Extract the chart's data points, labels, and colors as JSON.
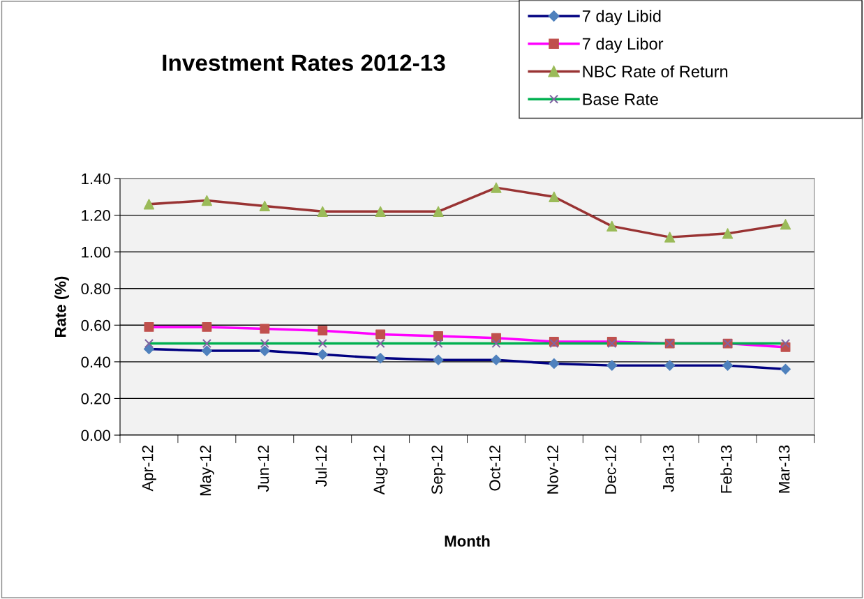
{
  "chart_data": {
    "type": "line",
    "title": "Investment Rates 2012-13",
    "xlabel": "Month",
    "ylabel": "Rate (%)",
    "categories": [
      "Apr-12",
      "May-12",
      "Jun-12",
      "Jul-12",
      "Aug-12",
      "Sep-12",
      "Oct-12",
      "Nov-12",
      "Dec-12",
      "Jan-13",
      "Feb-13",
      "Mar-13"
    ],
    "series": [
      {
        "name": "7 day Libid",
        "color": "#000080",
        "colors": [
          "#4f81bd",
          "#4f81bd",
          "#4f81bd",
          "#4f81bd",
          "#4f81bd",
          "#4f81bd",
          "#4f81bd",
          "#4f81bd",
          "#4f81bd",
          "#4f81bd",
          "#4f81bd",
          "#4f81bd"
        ],
        "marker": "diamond",
        "values": [
          0.47,
          0.46,
          0.46,
          0.44,
          0.42,
          0.41,
          0.41,
          0.39,
          0.38,
          0.38,
          0.38,
          0.36
        ]
      },
      {
        "name": "7 day Libor",
        "color": "#ff00ff",
        "colors": [
          "#c0504d",
          "#c0504d",
          "#c0504d",
          "#c0504d",
          "#c0504d",
          "#c0504d",
          "#c0504d",
          "#c0504d",
          "#c0504d",
          "#c0504d",
          "#c0504d",
          "#c0504d"
        ],
        "marker": "square",
        "values": [
          0.59,
          0.59,
          0.58,
          0.57,
          0.55,
          0.54,
          0.53,
          0.51,
          0.51,
          0.5,
          0.5,
          0.48
        ]
      },
      {
        "name": "NBC Rate of Return",
        "color": "#993333",
        "colors": [
          "#9bbb59",
          "#9bbb59",
          "#9bbb59",
          "#9bbb59",
          "#9bbb59",
          "#9bbb59",
          "#9bbb59",
          "#9bbb59",
          "#9bbb59",
          "#9bbb59",
          "#9bbb59",
          "#9bbb59"
        ],
        "marker": "triangle",
        "values": [
          1.26,
          1.28,
          1.25,
          1.22,
          1.22,
          1.22,
          1.35,
          1.3,
          1.14,
          1.08,
          1.1,
          1.15
        ]
      },
      {
        "name": "Base Rate",
        "color": "#00b050",
        "colors": [
          "#8064a2",
          "#8064a2",
          "#8064a2",
          "#8064a2",
          "#8064a2",
          "#8064a2",
          "#8064a2",
          "#8064a2",
          "#8064a2",
          "#8064a2",
          "#8064a2",
          "#8064a2"
        ],
        "marker": "cross",
        "values": [
          0.5,
          0.5,
          0.5,
          0.5,
          0.5,
          0.5,
          0.5,
          0.5,
          0.5,
          0.5,
          0.5,
          0.5
        ]
      }
    ],
    "ylim": [
      0,
      1.4
    ],
    "yticks": [
      {
        "value": 0,
        "label": "0.00"
      },
      {
        "value": 0.2,
        "label": "0.20"
      },
      {
        "value": 0.4,
        "label": "0.40"
      },
      {
        "value": 0.6,
        "label": "0.60"
      },
      {
        "value": 0.8,
        "label": "0.80"
      },
      {
        "value": 1.0,
        "label": "1.00"
      },
      {
        "value": 1.2,
        "label": "1.20"
      },
      {
        "value": 1.4,
        "label": "1.40"
      }
    ],
    "grid": "y",
    "legend": "top right",
    "line_style": "solid"
  }
}
